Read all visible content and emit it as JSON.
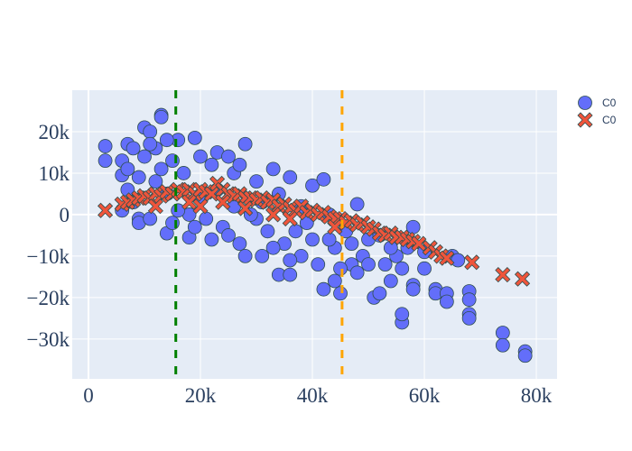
{
  "chart_data": {
    "type": "scatter",
    "title": "",
    "xlabel": "",
    "ylabel": "",
    "value_unit": "thousands",
    "xlim": [
      -2.9,
      83.7
    ],
    "ylim": [
      -39.6,
      30
    ],
    "grid": true,
    "legend_placement": "top-right",
    "x_ticks": [
      {
        "v": 0,
        "label": "0"
      },
      {
        "v": 20,
        "label": "20k"
      },
      {
        "v": 40,
        "label": "40k"
      },
      {
        "v": 60,
        "label": "60k"
      },
      {
        "v": 80,
        "label": "80k"
      }
    ],
    "y_ticks": [
      {
        "v": 20,
        "label": "20k"
      },
      {
        "v": 10,
        "label": "10k"
      },
      {
        "v": 0,
        "label": "0"
      },
      {
        "v": -10,
        "label": "−10k"
      },
      {
        "v": -20,
        "label": "−20k"
      },
      {
        "v": -30,
        "label": "−30k"
      }
    ],
    "vlines": [
      {
        "x": 15.6,
        "color": "#008000",
        "style": "dash"
      },
      {
        "x": 45.3,
        "color": "#FFA500",
        "style": "dash"
      }
    ],
    "series": [
      {
        "name": "C0",
        "marker": "circle",
        "color": "#636efa",
        "points": [
          [
            3,
            16.5
          ],
          [
            3,
            13
          ],
          [
            6,
            13
          ],
          [
            6,
            9.5
          ],
          [
            7,
            17
          ],
          [
            8,
            16
          ],
          [
            9,
            -1
          ],
          [
            9,
            -2
          ],
          [
            10,
            21
          ],
          [
            11,
            20
          ],
          [
            13,
            24
          ],
          [
            13,
            23.5
          ],
          [
            12,
            16
          ],
          [
            14,
            -4.5
          ],
          [
            15,
            -2
          ],
          [
            16,
            18
          ],
          [
            18,
            -5.5
          ],
          [
            19,
            18.5
          ],
          [
            22,
            -6
          ],
          [
            23,
            15
          ],
          [
            25,
            14
          ],
          [
            28,
            17
          ],
          [
            28,
            -10
          ],
          [
            31,
            -10
          ],
          [
            33,
            11
          ],
          [
            34,
            -14.5
          ],
          [
            36,
            -14.5
          ],
          [
            36,
            9
          ],
          [
            40,
            7
          ],
          [
            42,
            8.5
          ],
          [
            42,
            -18
          ],
          [
            44,
            -16
          ],
          [
            45,
            -19
          ],
          [
            48,
            2.5
          ],
          [
            51,
            -20
          ],
          [
            52,
            -19
          ],
          [
            54,
            -16
          ],
          [
            56,
            -26
          ],
          [
            56,
            -24
          ],
          [
            58,
            -3
          ],
          [
            58,
            -17
          ],
          [
            58,
            -18
          ],
          [
            60,
            -13
          ],
          [
            62,
            -18
          ],
          [
            62,
            -19
          ],
          [
            64,
            -19
          ],
          [
            64,
            -21
          ],
          [
            68,
            -18.5
          ],
          [
            68,
            -20.5
          ],
          [
            68,
            -24
          ],
          [
            68,
            -25
          ],
          [
            74,
            -28.5
          ],
          [
            74,
            -31.5
          ],
          [
            78,
            -33
          ],
          [
            78,
            -34
          ],
          [
            65,
            -10
          ],
          [
            66,
            -11
          ],
          [
            50,
            -6
          ],
          [
            47,
            -12
          ],
          [
            53,
            -12
          ],
          [
            55,
            -10
          ],
          [
            57,
            -8
          ],
          [
            40,
            -6
          ],
          [
            38,
            -10
          ],
          [
            26,
            2
          ],
          [
            30,
            -1
          ],
          [
            20,
            4
          ],
          [
            17,
            10
          ],
          [
            12,
            8
          ],
          [
            24,
            -3
          ],
          [
            32,
            -4
          ],
          [
            35,
            -7
          ],
          [
            44,
            -8
          ],
          [
            46,
            -4
          ],
          [
            21,
            -1
          ],
          [
            27,
            -7
          ],
          [
            29,
            0
          ],
          [
            34,
            5
          ],
          [
            15,
            13
          ],
          [
            22,
            12
          ],
          [
            26,
            10
          ],
          [
            30,
            8
          ],
          [
            38,
            2
          ],
          [
            43,
            0
          ],
          [
            49,
            -10
          ],
          [
            52,
            -5
          ],
          [
            10,
            14
          ],
          [
            14,
            5
          ],
          [
            18,
            0
          ],
          [
            23,
            6
          ],
          [
            8,
            3
          ],
          [
            7,
            6
          ],
          [
            6,
            1
          ],
          [
            11,
            -1
          ],
          [
            9,
            9
          ],
          [
            13,
            11
          ],
          [
            16,
            1
          ],
          [
            19,
            -3
          ],
          [
            25,
            -5
          ],
          [
            33,
            -8
          ],
          [
            37,
            -4
          ],
          [
            41,
            -12
          ],
          [
            45,
            -13
          ],
          [
            48,
            -14
          ],
          [
            50,
            -12
          ],
          [
            54,
            -8
          ],
          [
            39,
            -2
          ],
          [
            36,
            -11
          ],
          [
            31,
            3
          ],
          [
            27,
            12
          ],
          [
            20,
            14
          ],
          [
            11,
            17
          ],
          [
            14,
            18
          ],
          [
            7,
            11
          ],
          [
            43,
            -6
          ],
          [
            47,
            -7
          ],
          [
            56,
            -13
          ],
          [
            60,
            -9
          ]
        ]
      },
      {
        "name": "C0",
        "marker": "x",
        "color": "#EF553B",
        "points": [
          [
            3,
            1
          ],
          [
            6,
            2.5
          ],
          [
            7,
            3
          ],
          [
            8,
            3.5
          ],
          [
            9,
            4
          ],
          [
            10,
            4.5
          ],
          [
            11,
            4
          ],
          [
            12,
            5
          ],
          [
            13,
            4.5
          ],
          [
            14,
            5.5
          ],
          [
            15,
            5
          ],
          [
            16,
            6
          ],
          [
            17,
            5.5
          ],
          [
            18,
            6
          ],
          [
            19,
            5
          ],
          [
            20,
            6
          ],
          [
            21,
            5.5
          ],
          [
            22,
            5
          ],
          [
            23,
            7.5
          ],
          [
            24,
            6
          ],
          [
            25,
            5
          ],
          [
            26,
            4.5
          ],
          [
            27,
            5
          ],
          [
            28,
            4
          ],
          [
            29,
            4
          ],
          [
            30,
            3.5
          ],
          [
            31,
            4
          ],
          [
            32,
            3
          ],
          [
            33,
            3.5
          ],
          [
            34,
            2
          ],
          [
            35,
            2.5
          ],
          [
            36,
            1.5
          ],
          [
            37,
            1
          ],
          [
            38,
            2
          ],
          [
            39,
            0.5
          ],
          [
            40,
            1
          ],
          [
            41,
            0
          ],
          [
            42,
            0.5
          ],
          [
            43,
            -0.5
          ],
          [
            44,
            -1
          ],
          [
            45,
            -1
          ],
          [
            46,
            -2
          ],
          [
            47,
            -1.5
          ],
          [
            48,
            -2.5
          ],
          [
            49,
            -2
          ],
          [
            50,
            -3
          ],
          [
            51,
            -3.5
          ],
          [
            52,
            -4.5
          ],
          [
            53,
            -5
          ],
          [
            54,
            -4.5
          ],
          [
            55,
            -5.5
          ],
          [
            56,
            -5.5
          ],
          [
            57,
            -6
          ],
          [
            58,
            -6.5
          ],
          [
            59,
            -7
          ],
          [
            61,
            -8
          ],
          [
            62,
            -9
          ],
          [
            63,
            -10
          ],
          [
            64,
            -10.5
          ],
          [
            68.5,
            -11.5
          ],
          [
            74,
            -14.5
          ],
          [
            77.5,
            -15.5
          ],
          [
            20,
            2
          ],
          [
            28,
            1.5
          ],
          [
            33,
            0
          ],
          [
            18,
            3
          ],
          [
            12,
            2
          ],
          [
            24,
            3
          ],
          [
            36,
            -1
          ],
          [
            44,
            -3
          ]
        ]
      }
    ]
  },
  "legend": {
    "items": [
      {
        "label": "C0",
        "marker": "circle"
      },
      {
        "label": "C0",
        "marker": "x"
      }
    ]
  },
  "colors": {
    "plot_bg": "#e5ecf6",
    "grid": "#ffffff",
    "marker_line": "#2f4f4f"
  }
}
